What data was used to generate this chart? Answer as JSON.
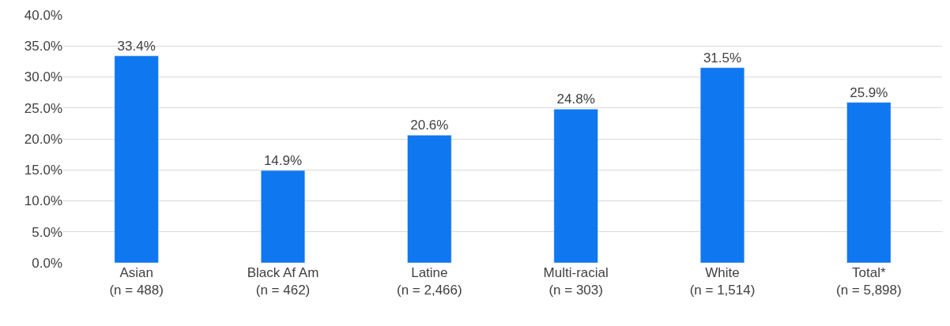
{
  "chart_data": {
    "type": "bar",
    "categories": [
      "Asian\n(n = 488)",
      "Black Af Am\n(n = 462)",
      "Latine\n(n = 2,466)",
      "Multi-racial\n(n = 303)",
      "White\n(n = 1,514)",
      "Total*\n(n = 5,898)"
    ],
    "values": [
      33.4,
      14.9,
      20.6,
      24.8,
      31.5,
      25.9
    ],
    "value_labels": [
      "33.4%",
      "14.9%",
      "20.6%",
      "24.8%",
      "31.5%",
      "25.9%"
    ],
    "color": "#0f77ef",
    "ylim": [
      0,
      40
    ],
    "yticks": [
      {
        "value": 0,
        "label": "0.0%"
      },
      {
        "value": 5,
        "label": "5.0%"
      },
      {
        "value": 10,
        "label": "10.0%"
      },
      {
        "value": 15,
        "label": "15.0%"
      },
      {
        "value": 20,
        "label": "20.0%"
      },
      {
        "value": 25,
        "label": "25.0%"
      },
      {
        "value": 30,
        "label": "30.0%"
      },
      {
        "value": 35,
        "label": "35.0%"
      },
      {
        "value": 40,
        "label": "40.0%"
      }
    ],
    "grid": "y",
    "legend": false
  }
}
